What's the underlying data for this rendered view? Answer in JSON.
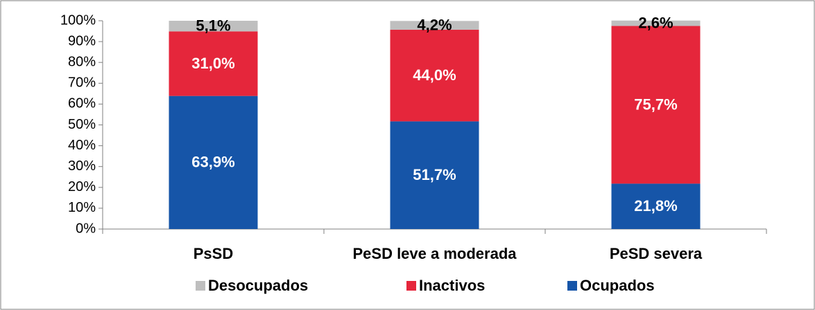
{
  "chart_data": {
    "type": "stacked_bar",
    "categories": [
      "PsSD",
      "PeSD leve a moderada",
      "PeSD severa"
    ],
    "series": [
      {
        "name": "Desocupados",
        "color": "#bfbfbf",
        "values": [
          5.1,
          4.2,
          2.6
        ],
        "value_labels": [
          "5,1%",
          "4,2%",
          "2,6%"
        ]
      },
      {
        "name": "Inactivos",
        "color": "#e5263b",
        "values": [
          31.0,
          44.0,
          75.7
        ],
        "value_labels": [
          "31,0%",
          "44,0%",
          "75,7%"
        ]
      },
      {
        "name": "Ocupados",
        "color": "#1655a8",
        "values": [
          63.9,
          51.7,
          21.8
        ],
        "value_labels": [
          "63,9%",
          "51,7%",
          "21,8%"
        ]
      }
    ],
    "ylim": [
      0,
      100
    ],
    "yticks": [
      {
        "value": 0,
        "label": "0%"
      },
      {
        "value": 10,
        "label": "10%"
      },
      {
        "value": 20,
        "label": "20%"
      },
      {
        "value": 30,
        "label": "30%"
      },
      {
        "value": 40,
        "label": "40%"
      },
      {
        "value": 50,
        "label": "50%"
      },
      {
        "value": 60,
        "label": "60%"
      },
      {
        "value": 70,
        "label": "70%"
      },
      {
        "value": 80,
        "label": "80%"
      },
      {
        "value": 90,
        "label": "90%"
      },
      {
        "value": 100,
        "label": "100%"
      }
    ],
    "grid": false,
    "legend": "bottom"
  }
}
